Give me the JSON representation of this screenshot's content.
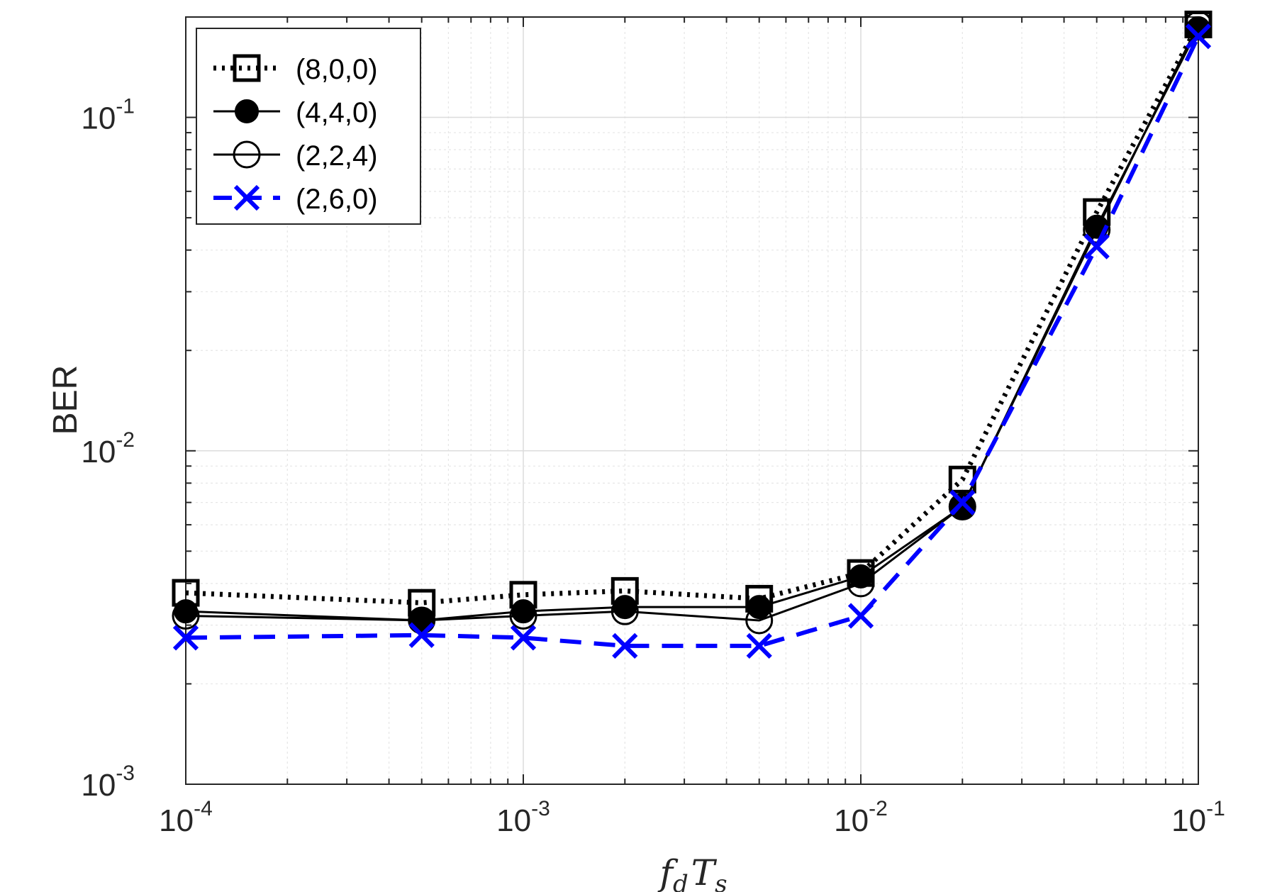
{
  "chart_data": {
    "type": "line",
    "xscale": "log",
    "yscale": "log",
    "xlim": [
      0.0001,
      0.1
    ],
    "ylim": [
      0.001,
      0.2
    ],
    "grid": true,
    "minor_grid": true,
    "legend_position": "top-left",
    "xlabel": {
      "base": "f",
      "base_sub": "d",
      "second": "T",
      "second_sub": "s"
    },
    "ylabel": "BER",
    "x_ticks": [
      {
        "value": 0.0001,
        "base": "10",
        "exp": "-4"
      },
      {
        "value": 0.001,
        "base": "10",
        "exp": "-3"
      },
      {
        "value": 0.01,
        "base": "10",
        "exp": "-2"
      },
      {
        "value": 0.1,
        "base": "10",
        "exp": "-1"
      }
    ],
    "y_ticks": [
      {
        "value": 0.001,
        "base": "10",
        "exp": "-3"
      },
      {
        "value": 0.01,
        "base": "10",
        "exp": "-2"
      },
      {
        "value": 0.1,
        "base": "10",
        "exp": "-1"
      }
    ],
    "x": [
      0.0001,
      0.0005,
      0.001,
      0.002,
      0.005,
      0.01,
      0.02,
      0.05,
      0.1
    ],
    "series": [
      {
        "name": "(8,0,0)",
        "color": "#000000",
        "line": "dotted",
        "marker": "square",
        "values": [
          0.00375,
          0.0035,
          0.0037,
          0.0038,
          0.0036,
          0.0043,
          0.0082,
          0.052,
          0.19
        ]
      },
      {
        "name": "(4,4,0)",
        "color": "#000000",
        "line": "solid",
        "marker": "filled-circle",
        "values": [
          0.0033,
          0.0031,
          0.0033,
          0.0034,
          0.0034,
          0.0042,
          0.0068,
          0.047,
          0.185
        ]
      },
      {
        "name": "(2,2,4)",
        "color": "#000000",
        "line": "solid",
        "marker": "open-circle",
        "values": [
          0.0032,
          0.0031,
          0.0032,
          0.0033,
          0.0031,
          0.004,
          0.0068,
          0.046,
          0.19
        ]
      },
      {
        "name": "(2,6,0)",
        "color": "#0000ff",
        "line": "dashed",
        "marker": "x",
        "values": [
          0.00275,
          0.0028,
          0.00275,
          0.0026,
          0.0026,
          0.0032,
          0.007,
          0.041,
          0.175
        ]
      }
    ]
  }
}
